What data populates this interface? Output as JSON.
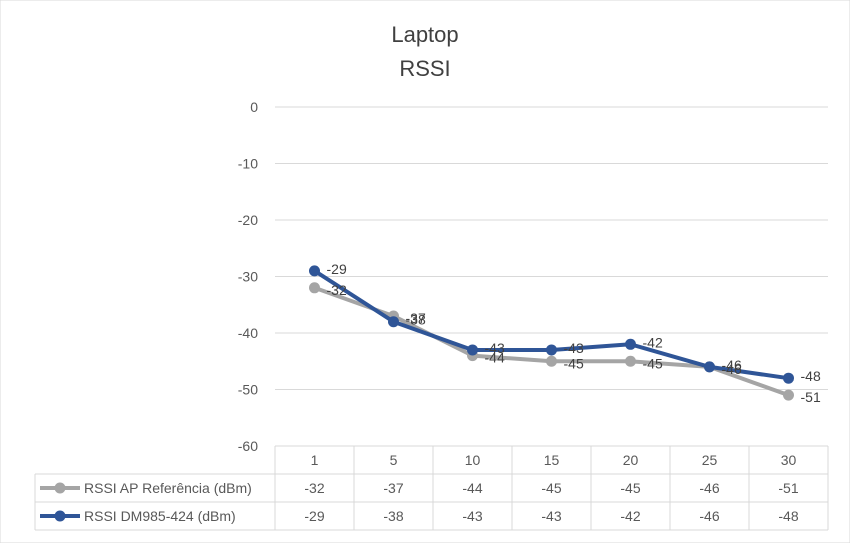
{
  "chart_data": {
    "type": "line",
    "title_line1": "Laptop",
    "title_line2": "RSSI",
    "categories": [
      "1",
      "5",
      "10",
      "15",
      "20",
      "25",
      "30"
    ],
    "y_ticks": [
      "0",
      "-10",
      "-20",
      "-30",
      "-40",
      "-50",
      "-60"
    ],
    "ylim": [
      -60,
      0
    ],
    "grid": true,
    "legend_placement": "data-table",
    "series": [
      {
        "name": "RSSI AP Referência (dBm)",
        "color": "#A5A5A5",
        "values": [
          -32,
          -37,
          -44,
          -45,
          -45,
          -46,
          -51
        ],
        "labels": [
          "-32",
          "-37",
          "-44",
          "-45",
          "-45",
          "-46",
          "-51"
        ]
      },
      {
        "name": "RSSI DM985-424 (dBm)",
        "color": "#2F5597",
        "values": [
          -29,
          -38,
          -43,
          -43,
          -42,
          -46,
          -48
        ],
        "labels": [
          "-29",
          "-38",
          "-43",
          "-43",
          "-42",
          "-46",
          "-48"
        ]
      }
    ]
  }
}
